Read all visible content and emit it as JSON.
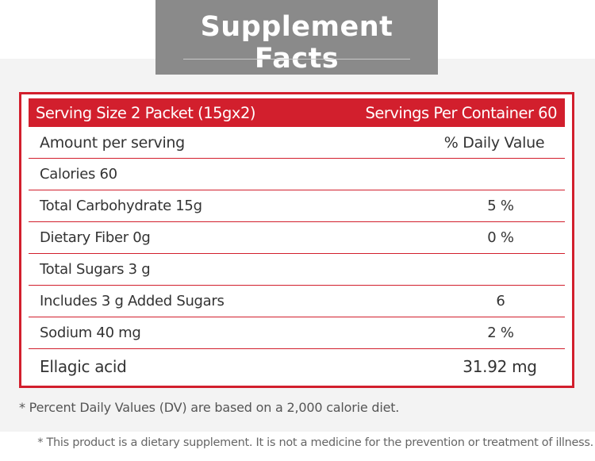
{
  "title": "Supplement Facts",
  "header": {
    "serving_size": "Serving Size 2 Packet (15gx2)",
    "servings_per_container": "Servings Per Container 60"
  },
  "columns": {
    "amount": "Amount per serving",
    "daily_value": "% Daily Value"
  },
  "rows": [
    {
      "label": "Calories 60",
      "value": ""
    },
    {
      "label": "Total Carbohydrate 15g",
      "value": "5 %"
    },
    {
      "label": "Dietary Fiber 0g",
      "value": "0 %"
    },
    {
      "label": "Total Sugars 3 g",
      "value": ""
    },
    {
      "label": "Includes 3 g Added Sugars",
      "value": "6"
    },
    {
      "label": "Sodium 40 mg",
      "value": "2 %"
    },
    {
      "label": "Ellagic acid",
      "value": "31.92 mg"
    }
  ],
  "footnote": "* Percent Daily Values (DV) are based on a 2,000 calorie diet.",
  "disclaimer": "* This product is a dietary supplement. It is not a medicine for the prevention or treatment of illness.",
  "colors": {
    "accent_red": "#d21f2d",
    "title_bg": "#8a8a8a",
    "panel_bg": "#f3f3f3"
  }
}
